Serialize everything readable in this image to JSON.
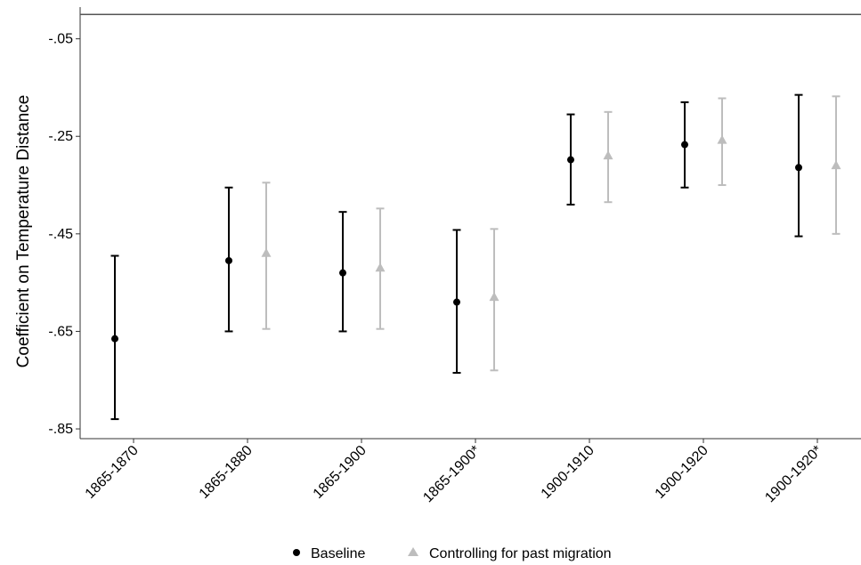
{
  "chart_data": {
    "type": "errorbar",
    "title": "",
    "xlabel": "",
    "ylabel": "Coefficient on Temperature Distance",
    "categories": [
      "1865-1870",
      "1865-1880",
      "1865-1900",
      "1865-1900*",
      "1900-1910",
      "1900-1920",
      "1900-1920*"
    ],
    "yticks": [
      -0.85,
      -0.65,
      -0.45,
      -0.25,
      -0.05
    ],
    "ytick_labels": [
      "-.85",
      "-.65",
      "-.45",
      "-.25",
      "-.05"
    ],
    "ylim": [
      -0.87,
      0.015
    ],
    "reference_line": 0,
    "grid": false,
    "legend_position": "bottom",
    "series": [
      {
        "name": "Baseline",
        "marker": "circle",
        "color": "#000000",
        "values": [
          -0.665,
          -0.505,
          -0.53,
          -0.59,
          -0.298,
          -0.267,
          -0.314
        ],
        "lower": [
          -0.83,
          -0.65,
          -0.65,
          -0.735,
          -0.39,
          -0.355,
          -0.455
        ],
        "upper": [
          -0.495,
          -0.355,
          -0.405,
          -0.442,
          -0.205,
          -0.18,
          -0.165
        ]
      },
      {
        "name": "Controlling for past migration",
        "marker": "triangle",
        "color": "#bdbdbd",
        "values": [
          null,
          -0.49,
          -0.52,
          -0.58,
          -0.29,
          -0.258,
          -0.31
        ],
        "lower": [
          null,
          -0.645,
          -0.645,
          -0.73,
          -0.385,
          -0.35,
          -0.45
        ],
        "upper": [
          null,
          -0.345,
          -0.398,
          -0.44,
          -0.2,
          -0.172,
          -0.168
        ]
      }
    ]
  }
}
